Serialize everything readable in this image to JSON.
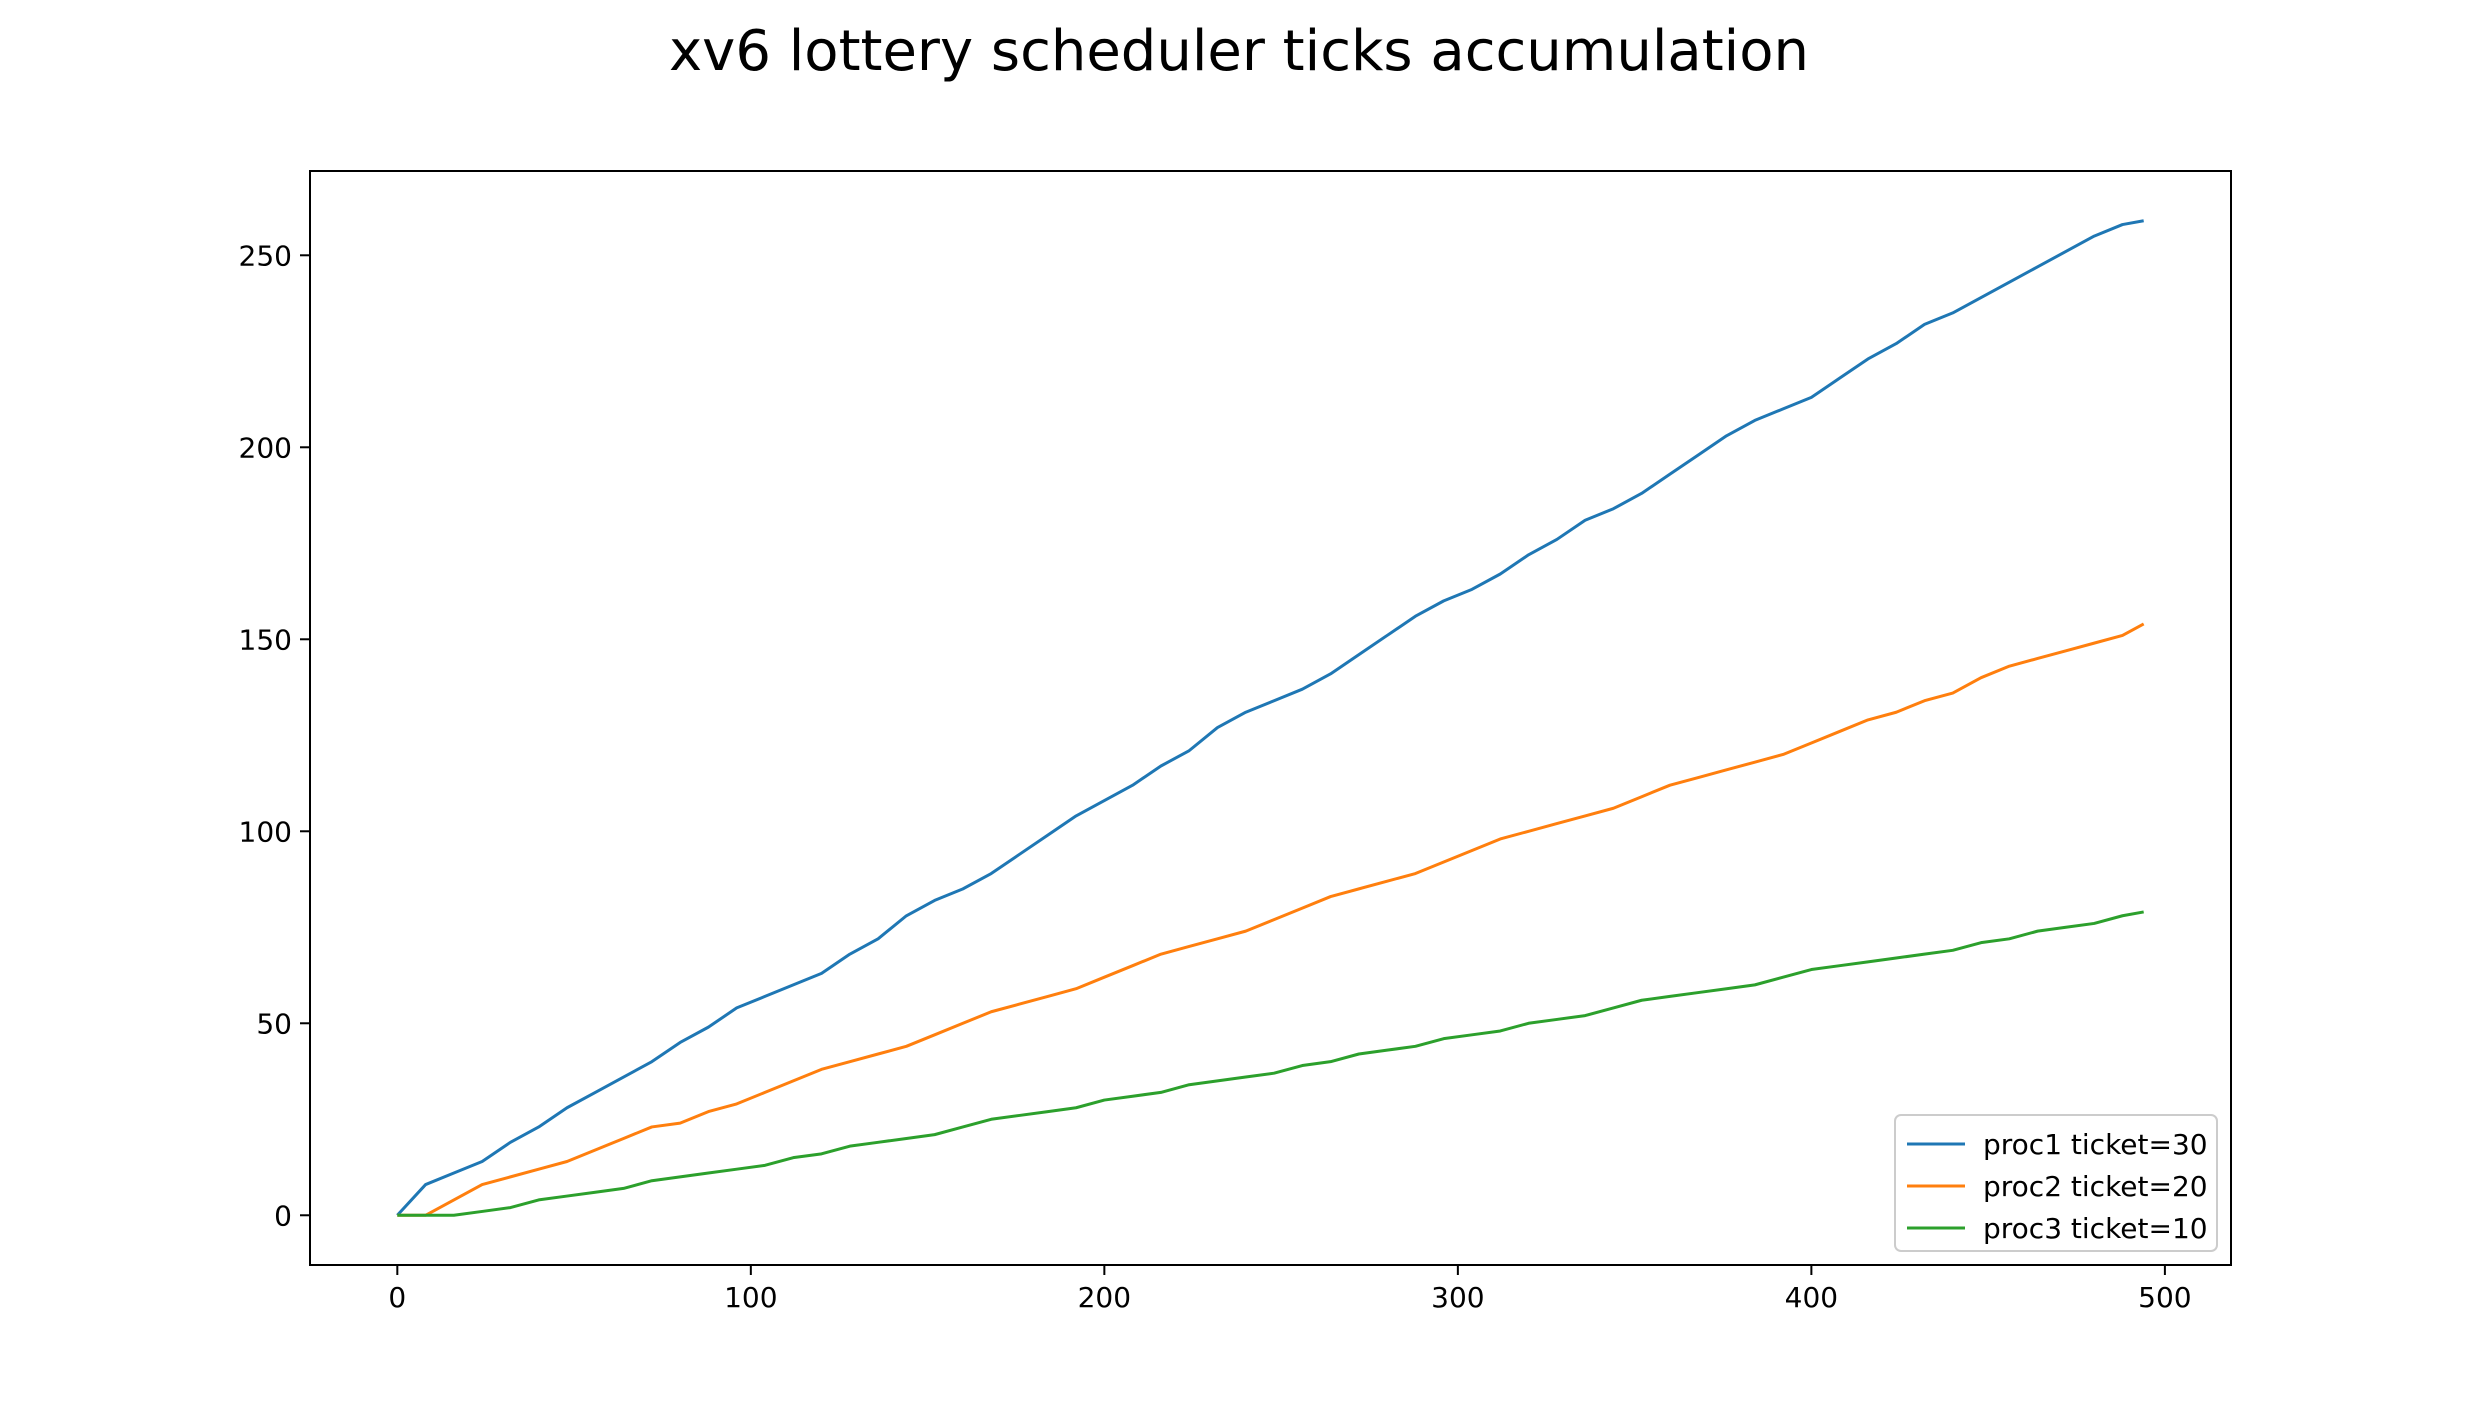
{
  "chart_data": {
    "type": "line",
    "title": "xv6 lottery scheduler ticks accumulation",
    "xlabel": "",
    "ylabel": "",
    "xlim": [
      -24.7,
      518.7
    ],
    "ylim": [
      -12.95,
      271.95
    ],
    "xticks": [
      0,
      100,
      200,
      300,
      400,
      500
    ],
    "yticks": [
      0,
      50,
      100,
      150,
      200,
      250
    ],
    "grid": false,
    "legend_position": "lower right",
    "series": [
      {
        "name": "proc1 ticket=30",
        "color": "#1f77b4",
        "x": [
          0,
          8,
          16,
          24,
          32,
          40,
          48,
          56,
          64,
          72,
          80,
          88,
          96,
          104,
          112,
          120,
          128,
          136,
          144,
          152,
          160,
          168,
          176,
          184,
          192,
          200,
          208,
          216,
          224,
          232,
          240,
          248,
          256,
          264,
          272,
          280,
          288,
          296,
          304,
          312,
          320,
          328,
          336,
          344,
          352,
          360,
          368,
          376,
          384,
          392,
          400,
          408,
          416,
          424,
          432,
          440,
          448,
          456,
          464,
          472,
          480,
          488,
          494
        ],
        "values": [
          0,
          8,
          11,
          14,
          19,
          23,
          28,
          32,
          36,
          40,
          45,
          49,
          54,
          57,
          60,
          63,
          68,
          72,
          78,
          82,
          85,
          89,
          94,
          99,
          104,
          108,
          112,
          117,
          121,
          127,
          131,
          134,
          137,
          141,
          146,
          151,
          156,
          160,
          163,
          167,
          172,
          176,
          181,
          184,
          188,
          193,
          198,
          203,
          207,
          210,
          213,
          218,
          223,
          227,
          232,
          235,
          239,
          243,
          247,
          251,
          255,
          258,
          259
        ]
      },
      {
        "name": "proc2 ticket=20",
        "color": "#ff7f0e",
        "x": [
          0,
          8,
          16,
          24,
          32,
          40,
          48,
          56,
          64,
          72,
          80,
          88,
          96,
          104,
          112,
          120,
          128,
          136,
          144,
          152,
          160,
          168,
          176,
          184,
          192,
          200,
          208,
          216,
          224,
          232,
          240,
          248,
          256,
          264,
          272,
          280,
          288,
          296,
          304,
          312,
          320,
          328,
          336,
          344,
          352,
          360,
          368,
          376,
          384,
          392,
          400,
          408,
          416,
          424,
          432,
          440,
          448,
          456,
          464,
          472,
          480,
          488,
          494
        ],
        "values": [
          0,
          0,
          4,
          8,
          10,
          12,
          14,
          17,
          20,
          23,
          24,
          27,
          29,
          32,
          35,
          38,
          40,
          42,
          44,
          47,
          50,
          53,
          55,
          57,
          59,
          62,
          65,
          68,
          70,
          72,
          74,
          77,
          80,
          83,
          85,
          87,
          89,
          92,
          95,
          98,
          100,
          102,
          104,
          106,
          109,
          112,
          114,
          116,
          118,
          120,
          123,
          126,
          129,
          131,
          134,
          136,
          140,
          143,
          145,
          147,
          149,
          151,
          154
        ]
      },
      {
        "name": "proc3 ticket=10",
        "color": "#2ca02c",
        "x": [
          0,
          8,
          16,
          24,
          32,
          40,
          48,
          56,
          64,
          72,
          80,
          88,
          96,
          104,
          112,
          120,
          128,
          136,
          144,
          152,
          160,
          168,
          176,
          184,
          192,
          200,
          208,
          216,
          224,
          232,
          240,
          248,
          256,
          264,
          272,
          280,
          288,
          296,
          304,
          312,
          320,
          328,
          336,
          344,
          352,
          360,
          368,
          376,
          384,
          392,
          400,
          408,
          416,
          424,
          432,
          440,
          448,
          456,
          464,
          472,
          480,
          488,
          494
        ],
        "values": [
          0,
          0,
          0,
          1,
          2,
          4,
          5,
          6,
          7,
          9,
          10,
          11,
          12,
          13,
          15,
          16,
          18,
          19,
          20,
          21,
          23,
          25,
          26,
          27,
          28,
          30,
          31,
          32,
          34,
          35,
          36,
          37,
          39,
          40,
          42,
          43,
          44,
          46,
          47,
          48,
          50,
          51,
          52,
          54,
          56,
          57,
          58,
          59,
          60,
          62,
          64,
          65,
          66,
          67,
          68,
          69,
          71,
          72,
          74,
          75,
          76,
          78,
          79
        ]
      }
    ]
  }
}
